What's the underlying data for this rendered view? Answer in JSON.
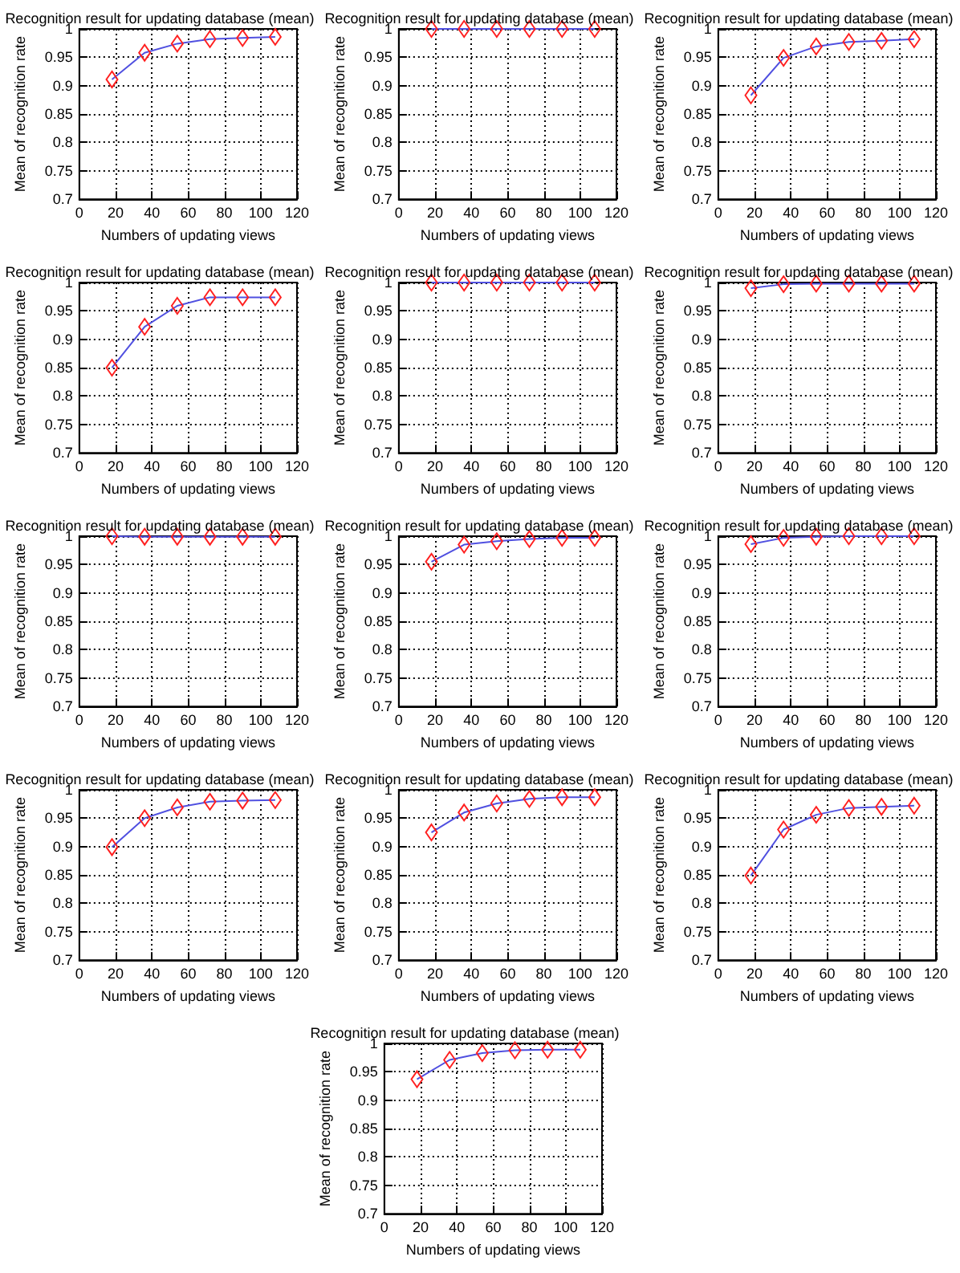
{
  "chart_data": [
    {
      "type": "line",
      "title": "Recognition result for updating database (mean)",
      "xlabel": "Numbers of updating views",
      "ylabel": "Mean of recognition rate",
      "x": [
        18,
        36,
        54,
        72,
        90,
        108
      ],
      "values": [
        0.911,
        0.958,
        0.974,
        0.982,
        0.984,
        0.986
      ],
      "color": "#5050e0",
      "xlim": [
        0,
        120
      ],
      "ylim": [
        0.7,
        1
      ],
      "xticks": [
        0,
        20,
        40,
        60,
        80,
        100,
        120
      ],
      "yticks": [
        0.7,
        0.75,
        0.8,
        0.85,
        0.9,
        0.95,
        1
      ],
      "grid": true,
      "marker": "diamond"
    },
    {
      "type": "line",
      "title": "Recognition result for updating database (mean)",
      "xlabel": "Numbers of updating views",
      "ylabel": "Mean of recognition rate",
      "x": [
        18,
        36,
        54,
        72,
        90,
        108
      ],
      "values": [
        1,
        1,
        1,
        1,
        1,
        1
      ],
      "color": "#5050e0",
      "xlim": [
        0,
        120
      ],
      "ylim": [
        0.7,
        1
      ],
      "xticks": [
        0,
        20,
        40,
        60,
        80,
        100,
        120
      ],
      "yticks": [
        0.7,
        0.75,
        0.8,
        0.85,
        0.9,
        0.95,
        1
      ],
      "grid": true,
      "marker": "diamond"
    },
    {
      "type": "line",
      "title": "Recognition result for updating database (mean)",
      "xlabel": "Numbers of updating views",
      "ylabel": "Mean of recognition rate",
      "x": [
        18,
        36,
        54,
        72,
        90,
        108
      ],
      "values": [
        0.883,
        0.949,
        0.969,
        0.977,
        0.979,
        0.982
      ],
      "color": "#5050e0",
      "xlim": [
        0,
        120
      ],
      "ylim": [
        0.7,
        1
      ],
      "xticks": [
        0,
        20,
        40,
        60,
        80,
        100,
        120
      ],
      "yticks": [
        0.7,
        0.75,
        0.8,
        0.85,
        0.9,
        0.95,
        1
      ],
      "grid": true,
      "marker": "diamond"
    },
    {
      "type": "line",
      "title": "Recognition result for updating database (mean)",
      "xlabel": "Numbers of updating views",
      "ylabel": "Mean of recognition rate",
      "x": [
        18,
        36,
        54,
        72,
        90,
        108
      ],
      "values": [
        0.85,
        0.922,
        0.959,
        0.974,
        0.974,
        0.974
      ],
      "color": "#5050e0",
      "xlim": [
        0,
        120
      ],
      "ylim": [
        0.7,
        1
      ],
      "xticks": [
        0,
        20,
        40,
        60,
        80,
        100,
        120
      ],
      "yticks": [
        0.7,
        0.75,
        0.8,
        0.85,
        0.9,
        0.95,
        1
      ],
      "grid": true,
      "marker": "diamond"
    },
    {
      "type": "line",
      "title": "Recognition result for updating database (mean)",
      "xlabel": "Numbers of updating views",
      "ylabel": "Mean of recognition rate",
      "x": [
        18,
        36,
        54,
        72,
        90,
        108
      ],
      "values": [
        1,
        1,
        1,
        1,
        1,
        1
      ],
      "color": "#5050e0",
      "xlim": [
        0,
        120
      ],
      "ylim": [
        0.7,
        1
      ],
      "xticks": [
        0,
        20,
        40,
        60,
        80,
        100,
        120
      ],
      "yticks": [
        0.7,
        0.75,
        0.8,
        0.85,
        0.9,
        0.95,
        1
      ],
      "grid": true,
      "marker": "diamond"
    },
    {
      "type": "line",
      "title": "Recognition result for updating database (mean)",
      "xlabel": "Numbers of updating views",
      "ylabel": "Mean of recognition rate",
      "x": [
        18,
        36,
        54,
        72,
        90,
        108
      ],
      "values": [
        0.99,
        0.997,
        0.998,
        0.998,
        0.998,
        0.998
      ],
      "color": "#5050e0",
      "xlim": [
        0,
        120
      ],
      "ylim": [
        0.7,
        1
      ],
      "xticks": [
        0,
        20,
        40,
        60,
        80,
        100,
        120
      ],
      "yticks": [
        0.7,
        0.75,
        0.8,
        0.85,
        0.9,
        0.95,
        1
      ],
      "grid": true,
      "marker": "diamond"
    },
    {
      "type": "line",
      "title": "Recognition result for updating database (mean)",
      "xlabel": "Numbers of updating views",
      "ylabel": "Mean of recognition rate",
      "x": [
        18,
        36,
        54,
        72,
        90,
        108
      ],
      "values": [
        1,
        0.999,
        0.999,
        0.999,
        0.999,
        0.999
      ],
      "color": "#5050e0",
      "xlim": [
        0,
        120
      ],
      "ylim": [
        0.7,
        1
      ],
      "xticks": [
        0,
        20,
        40,
        60,
        80,
        100,
        120
      ],
      "yticks": [
        0.7,
        0.75,
        0.8,
        0.85,
        0.9,
        0.95,
        1
      ],
      "grid": true,
      "marker": "diamond"
    },
    {
      "type": "line",
      "title": "Recognition result for updating database (mean)",
      "xlabel": "Numbers of updating views",
      "ylabel": "Mean of recognition rate",
      "x": [
        18,
        36,
        54,
        72,
        90,
        108
      ],
      "values": [
        0.955,
        0.985,
        0.991,
        0.995,
        0.997,
        0.997
      ],
      "color": "#5050e0",
      "xlim": [
        0,
        120
      ],
      "ylim": [
        0.7,
        1
      ],
      "xticks": [
        0,
        20,
        40,
        60,
        80,
        100,
        120
      ],
      "yticks": [
        0.7,
        0.75,
        0.8,
        0.85,
        0.9,
        0.95,
        1
      ],
      "grid": true,
      "marker": "diamond"
    },
    {
      "type": "line",
      "title": "Recognition result for updating database (mean)",
      "xlabel": "Numbers of updating views",
      "ylabel": "Mean of recognition rate",
      "x": [
        18,
        36,
        54,
        72,
        90,
        108
      ],
      "values": [
        0.986,
        0.997,
        0.999,
        1,
        1,
        1
      ],
      "color": "#5050e0",
      "xlim": [
        0,
        120
      ],
      "ylim": [
        0.7,
        1
      ],
      "xticks": [
        0,
        20,
        40,
        60,
        80,
        100,
        120
      ],
      "yticks": [
        0.7,
        0.75,
        0.8,
        0.85,
        0.9,
        0.95,
        1
      ],
      "grid": true,
      "marker": "diamond"
    },
    {
      "type": "line",
      "title": "Recognition result for updating database (mean)",
      "xlabel": "Numbers of updating views",
      "ylabel": "Mean of recognition rate",
      "x": [
        18,
        36,
        54,
        72,
        90,
        108
      ],
      "values": [
        0.899,
        0.95,
        0.969,
        0.979,
        0.981,
        0.982
      ],
      "color": "#5050e0",
      "xlim": [
        0,
        120
      ],
      "ylim": [
        0.7,
        1
      ],
      "xticks": [
        0,
        20,
        40,
        60,
        80,
        100,
        120
      ],
      "yticks": [
        0.7,
        0.75,
        0.8,
        0.85,
        0.9,
        0.95,
        1
      ],
      "grid": true,
      "marker": "diamond"
    },
    {
      "type": "line",
      "title": "Recognition result for updating database (mean)",
      "xlabel": "Numbers of updating views",
      "ylabel": "Mean of recognition rate",
      "x": [
        18,
        36,
        54,
        72,
        90,
        108
      ],
      "values": [
        0.925,
        0.96,
        0.976,
        0.984,
        0.987,
        0.987
      ],
      "color": "#5050e0",
      "xlim": [
        0,
        120
      ],
      "ylim": [
        0.7,
        1
      ],
      "xticks": [
        0,
        20,
        40,
        60,
        80,
        100,
        120
      ],
      "yticks": [
        0.7,
        0.75,
        0.8,
        0.85,
        0.9,
        0.95,
        1
      ],
      "grid": true,
      "marker": "diamond"
    },
    {
      "type": "line",
      "title": "Recognition result for updating database (mean)",
      "xlabel": "Numbers of updating views",
      "ylabel": "Mean of recognition rate",
      "x": [
        18,
        36,
        54,
        72,
        90,
        108
      ],
      "values": [
        0.849,
        0.93,
        0.956,
        0.968,
        0.97,
        0.972
      ],
      "color": "#5050e0",
      "xlim": [
        0,
        120
      ],
      "ylim": [
        0.7,
        1
      ],
      "xticks": [
        0,
        20,
        40,
        60,
        80,
        100,
        120
      ],
      "yticks": [
        0.7,
        0.75,
        0.8,
        0.85,
        0.9,
        0.95,
        1
      ],
      "grid": true,
      "marker": "diamond"
    },
    {
      "type": "line",
      "title": "Recognition result for updating database (mean)",
      "xlabel": "Numbers of updating views",
      "ylabel": "Mean of recognition rate",
      "x": [
        18,
        36,
        54,
        72,
        90,
        108
      ],
      "values": [
        0.937,
        0.971,
        0.983,
        0.988,
        0.989,
        0.989
      ],
      "color": "#5050e0",
      "xlim": [
        0,
        120
      ],
      "ylim": [
        0.7,
        1
      ],
      "xticks": [
        0,
        20,
        40,
        60,
        80,
        100,
        120
      ],
      "yticks": [
        0.7,
        0.75,
        0.8,
        0.85,
        0.9,
        0.95,
        1
      ],
      "grid": true,
      "marker": "diamond"
    }
  ]
}
